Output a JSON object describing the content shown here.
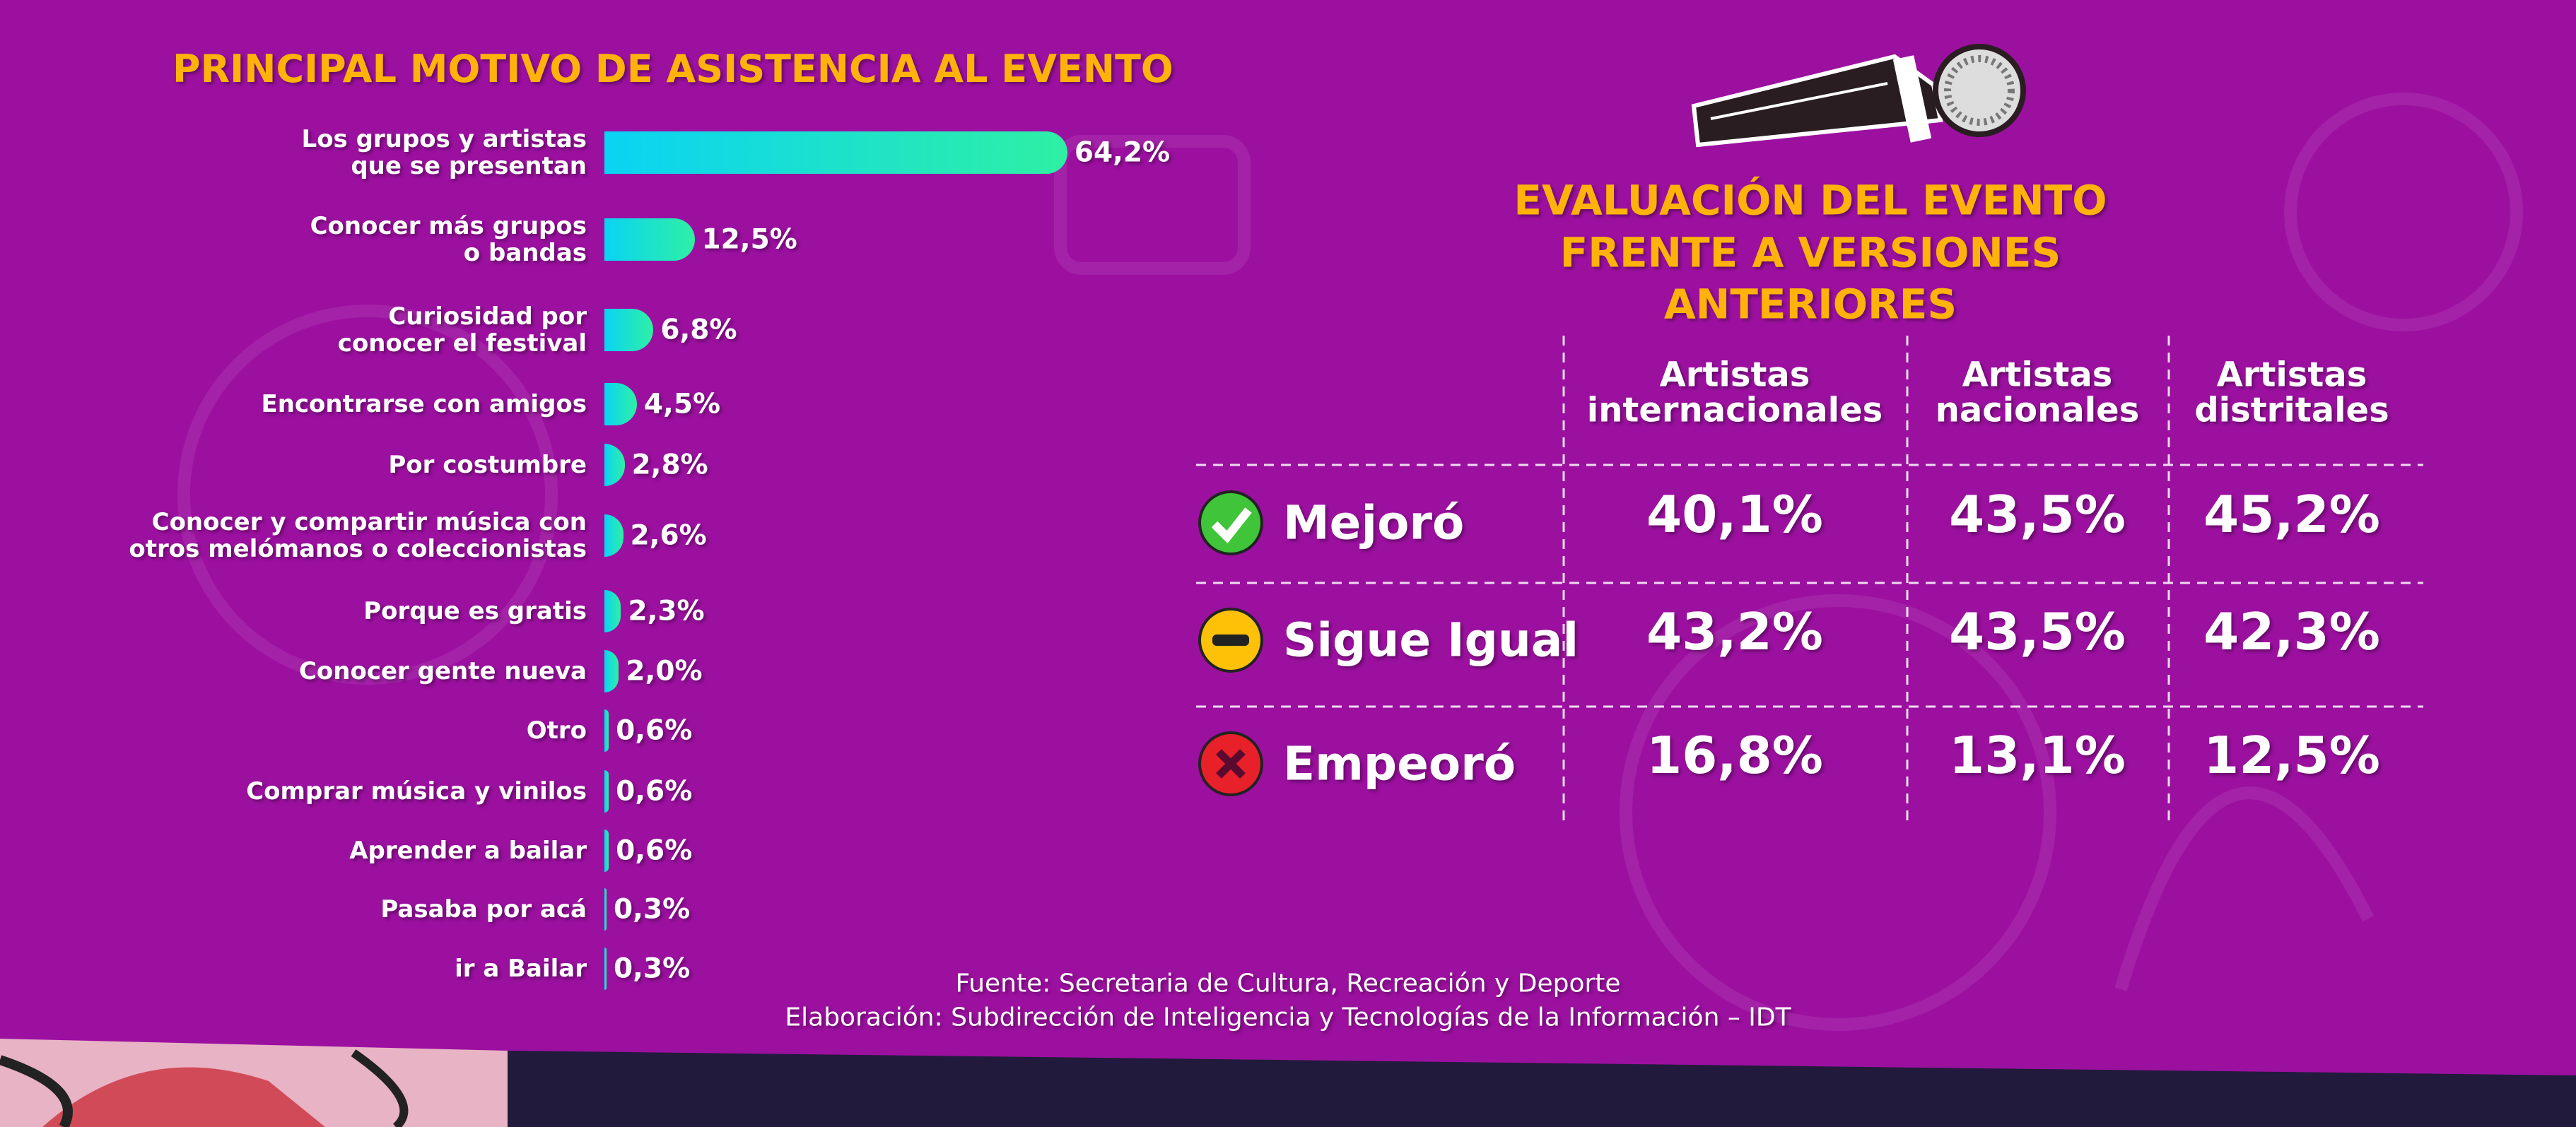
{
  "chart_data": {
    "type": "bar",
    "orientation": "horizontal",
    "title": "PRINCIPAL MOTIVO DE ASISTENCIA AL EVENTO",
    "categories": [
      "Los grupos y artistas\nque se presentan",
      "Conocer más grupos\no bandas",
      "Curiosidad por\nconocer el festival",
      "Encontrarse con amigos",
      "Por costumbre",
      "Conocer y compartir música con\notros melómanos o coleccionistas",
      "Porque es gratis",
      "Conocer gente nueva",
      "Otro",
      "Comprar música y vinilos",
      "Aprender a bailar",
      "Pasaba por acá",
      "ir a Bailar"
    ],
    "values": [
      64.2,
      12.5,
      6.8,
      4.5,
      2.8,
      2.6,
      2.3,
      2.0,
      0.6,
      0.6,
      0.6,
      0.3,
      0.3
    ],
    "value_labels": [
      "64,2%",
      "12,5%",
      "6,8%",
      "4,5%",
      "2,8%",
      "2,6%",
      "2,3%",
      "2,0%",
      "0,6%",
      "0,6%",
      "0,6%",
      "0,3%",
      "0,3%"
    ],
    "gradient": [
      "#0ad3f4",
      "#2ef0a4"
    ]
  },
  "table": {
    "title": "EVALUACIÓN DEL EVENTO\nFRENTE A VERSIONES ANTERIORES",
    "columns": [
      "Artistas\ninternacionales",
      "Artistas\nnacionales",
      "Artistas\ndistritales"
    ],
    "rows": [
      {
        "label": "Mejoró",
        "values": [
          "40,1%",
          "43,5%",
          "45,2%"
        ]
      },
      {
        "label": "Sigue Igual",
        "values": [
          "43,2%",
          "43,5%",
          "42,3%"
        ]
      },
      {
        "label": "Empeoró",
        "values": [
          "16,8%",
          "13,1%",
          "12,5%"
        ]
      }
    ]
  },
  "footer": {
    "source": "Fuente: Secretaria de Cultura, Recreación y Deporte",
    "credit": "Elaboración: Subdirección de Inteligencia y Tecnologías de la Información – IDT"
  }
}
